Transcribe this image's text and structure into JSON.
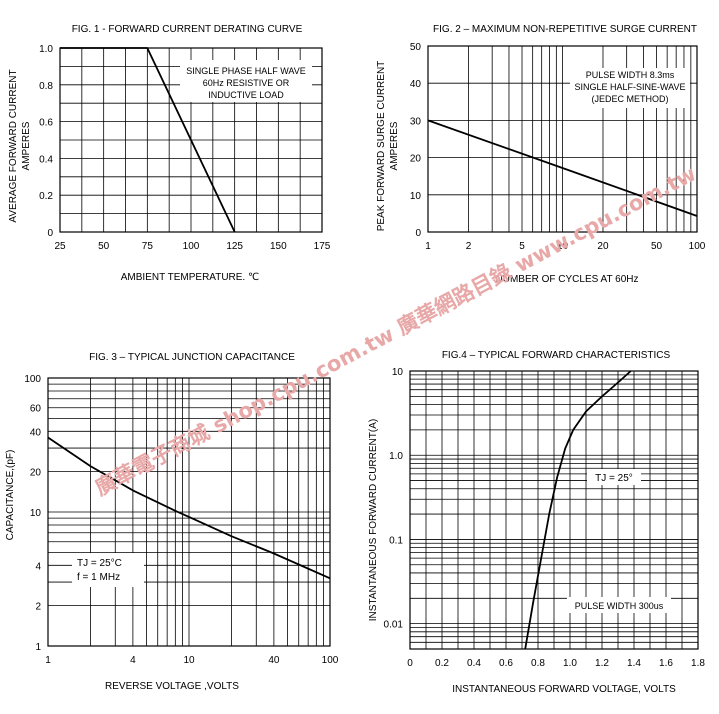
{
  "watermark": {
    "text": "廣華電子商城  shop.cpu.com.tw 廣華網路目錄  www.cpu.com.tw",
    "color": "#e8a8a8"
  },
  "chart_data": [
    {
      "id": "fig1",
      "type": "line",
      "title": "FIG. 1 - FORWARD  CURRENT  DERATING  CURVE",
      "xlabel": "AMBIENT TEMPERATURE. ℃",
      "ylabel": [
        "AVERAGE FORWARD CURRENT",
        "AMPERES"
      ],
      "xscale": "linear",
      "yscale": "linear",
      "xlim": [
        25,
        175
      ],
      "ylim": [
        0,
        1.0
      ],
      "xticks": [
        25,
        50,
        75,
        100,
        125,
        150,
        175
      ],
      "xtick_labels": [
        "25",
        "50",
        "75",
        "100",
        "125",
        "150",
        "175"
      ],
      "yticks": [
        0,
        0.2,
        0.4,
        0.6,
        0.8,
        1.0
      ],
      "ytick_labels": [
        "0",
        "0.2",
        "0.4",
        "0.6",
        "0.8",
        "1.0"
      ],
      "grid": true,
      "annotation": [
        "SINGLE PHASE HALF WAVE",
        "60Hz RESISTIVE OR",
        "INDUCTIVE LOAD"
      ],
      "series": [
        {
          "x": [
            25,
            75,
            125
          ],
          "y": [
            1.0,
            1.0,
            0
          ]
        }
      ]
    },
    {
      "id": "fig2",
      "type": "line",
      "title": "FIG. 2 – MAXIMUM NON-REPETITIVE SURGE CURRENT",
      "xlabel": "NUMBER OF CYCLES AT 60Hz",
      "ylabel": [
        "PEAK FORWARD SURGE CURRENT",
        "AMPERES"
      ],
      "xscale": "log",
      "yscale": "linear",
      "xlim": [
        1,
        100
      ],
      "ylim": [
        0,
        50
      ],
      "xticks": [
        1,
        2,
        5,
        10,
        20,
        50,
        100
      ],
      "xtick_labels": [
        "1",
        "2",
        "5",
        "10",
        "20",
        "50",
        "100"
      ],
      "yticks": [
        0,
        10,
        20,
        30,
        40,
        50
      ],
      "ytick_labels": [
        "0",
        "10",
        "20",
        "30",
        "40",
        "50"
      ],
      "grid": true,
      "annotation": [
        "PULSE WIDTH 8.3ms",
        "SINGLE HALF-SINE-WAVE",
        "(JEDEC METHOD)"
      ],
      "series": [
        {
          "x": [
            1,
            10,
            100
          ],
          "y": [
            30,
            17.2,
            4.3
          ]
        }
      ]
    },
    {
      "id": "fig3",
      "type": "line",
      "title": "FIG. 3 – TYPICAL JUNCTION  CAPACITANCE",
      "xlabel": "REVERSE VOLTAGE ,VOLTS",
      "ylabel": [
        "CAPACITANCE,(pF)"
      ],
      "xscale": "log",
      "yscale": "log",
      "xlim": [
        1,
        100
      ],
      "ylim": [
        1,
        100
      ],
      "xticks": [
        1,
        4,
        10,
        40,
        100
      ],
      "xtick_labels": [
        "1",
        "4",
        "10",
        "40",
        "100"
      ],
      "yticks": [
        1,
        2,
        4,
        10,
        20,
        40,
        60,
        100
      ],
      "ytick_labels": [
        "1",
        "2",
        "4",
        "10",
        "20",
        "40",
        "60",
        "100"
      ],
      "grid": true,
      "annotation": [
        "TJ = 25°C",
        "f = 1 MHz"
      ],
      "series": [
        {
          "x": [
            1,
            2,
            4,
            8,
            10,
            20,
            40,
            100
          ],
          "y": [
            36,
            22,
            14.5,
            10.2,
            9.2,
            6.6,
            4.9,
            3.2
          ]
        }
      ]
    },
    {
      "id": "fig4",
      "type": "line",
      "title": "FIG.4 – TYPICAL FORWARD CHARACTERISTICS",
      "xlabel": "INSTANTANEOUS FORWARD VOLTAGE,   VOLTS",
      "ylabel": [
        "INSTANTANEOUS FORWARD CURRENT(A)"
      ],
      "xscale": "linear",
      "yscale": "log",
      "xlim": [
        0,
        1.8
      ],
      "ylim": [
        0.005,
        10
      ],
      "xticks": [
        0,
        0.2,
        0.4,
        0.6,
        0.8,
        1.0,
        1.2,
        1.4,
        1.6,
        1.8
      ],
      "xtick_labels": [
        "0",
        "0.2",
        "0.4",
        "0.6",
        "0.8",
        "1.0",
        "1.2",
        "1.4",
        "1.6",
        "1.8"
      ],
      "yticks": [
        0.01,
        0.1,
        1.0,
        10
      ],
      "ytick_labels": [
        "0.01",
        "0.1",
        "1.0",
        "10"
      ],
      "grid": true,
      "annotation": [
        "TJ = 25°",
        "PULSE WIDTH 300us"
      ],
      "series": [
        {
          "x": [
            0.72,
            0.77,
            0.82,
            0.87,
            0.92,
            0.97,
            1.02,
            1.1,
            1.2,
            1.3,
            1.38
          ],
          "y": [
            0.005,
            0.018,
            0.06,
            0.2,
            0.55,
            1.2,
            2.0,
            3.3,
            5.0,
            7.3,
            10
          ]
        }
      ]
    }
  ]
}
